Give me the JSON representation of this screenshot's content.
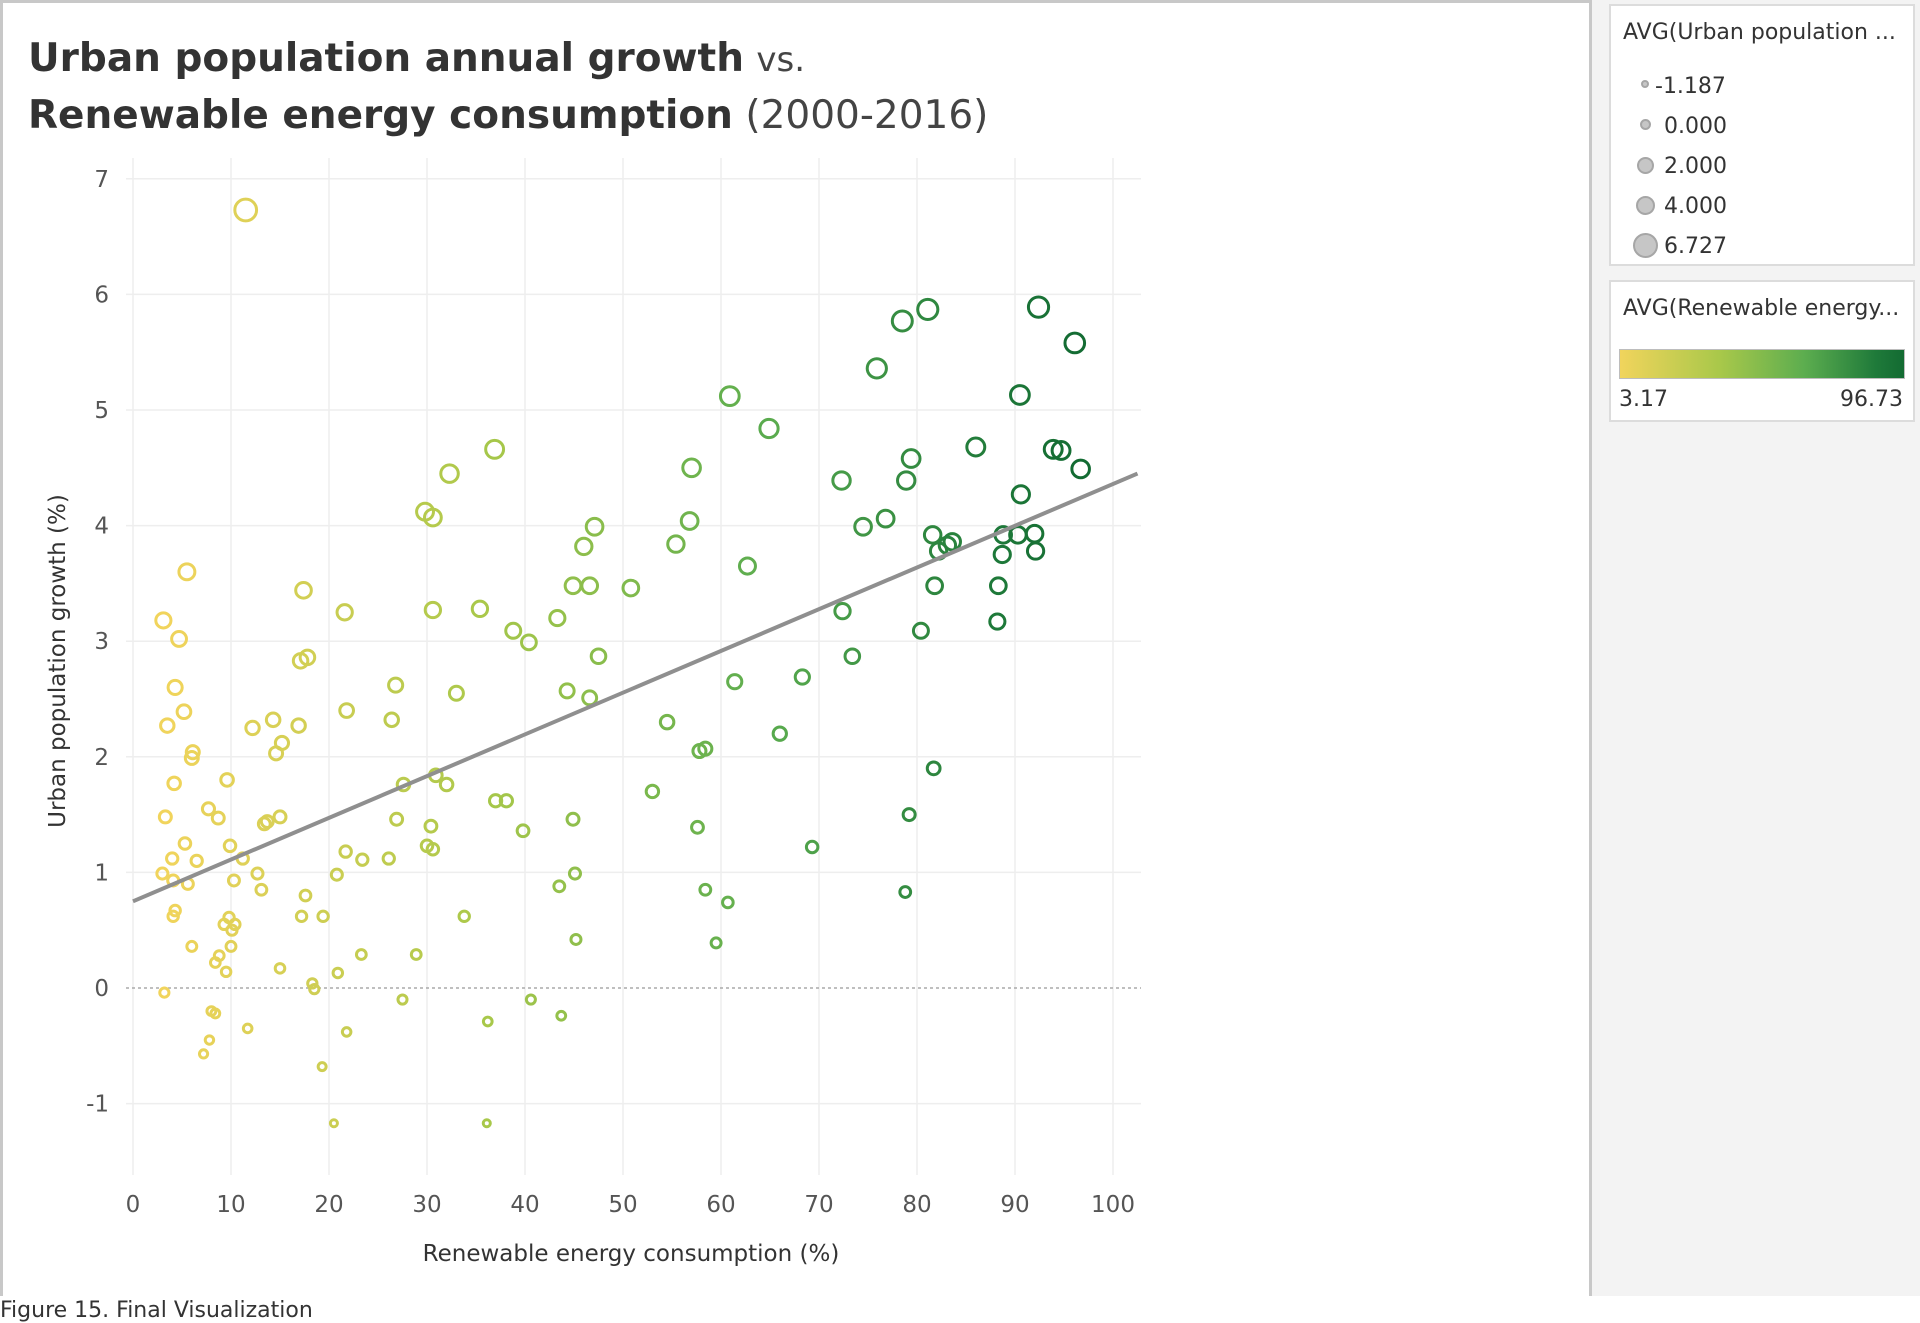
{
  "title": {
    "line1_bold": "Urban population annual growth",
    "line1_normal": "vs.",
    "line2_bold": "Renewable energy consumption",
    "line2_normal": "(2000-2016)"
  },
  "caption": "Figure 15. Final Visualization",
  "size_legend": {
    "title": "AVG(Urban population ...",
    "items": [
      "-1.187",
      "0.000",
      "2.000",
      "4.000",
      "6.727"
    ]
  },
  "color_legend": {
    "title": "AVG(Renewable energy...",
    "min_label": "3.17",
    "max_label": "96.73",
    "colors": [
      "#f1d45c",
      "#a9c84a",
      "#5cad4f",
      "#1f7a3a",
      "#136b32"
    ]
  },
  "chart_data": {
    "type": "scatter",
    "title": "Urban population annual growth vs. Renewable energy consumption (2000-2016)",
    "xlabel": "Renewable energy consumption (%)",
    "ylabel": "Urban population growth (%)",
    "xlim": [
      0,
      103
    ],
    "ylim": [
      -1.6,
      7.3
    ],
    "xticks": [
      0,
      10,
      20,
      30,
      40,
      50,
      60,
      70,
      80,
      90,
      100
    ],
    "yticks": [
      -1,
      0,
      1,
      2,
      3,
      4,
      5,
      6,
      7
    ],
    "grid": true,
    "zero_line": "dotted",
    "trend_line": {
      "x": [
        0,
        102.5
      ],
      "y": [
        0.75,
        4.45
      ]
    },
    "encoding": {
      "size": "urban population growth",
      "color": "renewable energy consumption"
    },
    "points": [
      [
        11.5,
        6.73
      ],
      [
        3.1,
        3.18
      ],
      [
        4.7,
        3.02
      ],
      [
        5.5,
        3.6
      ],
      [
        3.5,
        2.27
      ],
      [
        4.3,
        2.6
      ],
      [
        5.2,
        2.39
      ],
      [
        6.1,
        2.04
      ],
      [
        6.0,
        1.99
      ],
      [
        4.2,
        1.77
      ],
      [
        3.3,
        1.48
      ],
      [
        4.0,
        1.12
      ],
      [
        5.3,
        1.25
      ],
      [
        6.5,
        1.1
      ],
      [
        3.0,
        0.99
      ],
      [
        4.1,
        0.93
      ],
      [
        5.6,
        0.9
      ],
      [
        4.3,
        0.67
      ],
      [
        4.1,
        0.62
      ],
      [
        6.0,
        0.36
      ],
      [
        3.2,
        -0.04
      ],
      [
        7.7,
        1.55
      ],
      [
        8.7,
        1.47
      ],
      [
        9.6,
        1.8
      ],
      [
        9.9,
        1.23
      ],
      [
        10.3,
        0.93
      ],
      [
        9.3,
        0.55
      ],
      [
        9.8,
        0.61
      ],
      [
        10.1,
        0.5
      ],
      [
        10.4,
        0.55
      ],
      [
        8.8,
        0.28
      ],
      [
        8.4,
        0.22
      ],
      [
        9.5,
        0.14
      ],
      [
        10.0,
        0.36
      ],
      [
        8.0,
        -0.2
      ],
      [
        8.4,
        -0.22
      ],
      [
        7.8,
        -0.45
      ],
      [
        7.2,
        -0.57
      ],
      [
        11.7,
        -0.35
      ],
      [
        12.2,
        2.25
      ],
      [
        14.3,
        2.32
      ],
      [
        14.6,
        2.03
      ],
      [
        15.2,
        2.12
      ],
      [
        13.4,
        1.42
      ],
      [
        13.7,
        1.44
      ],
      [
        15.0,
        1.48
      ],
      [
        11.2,
        1.12
      ],
      [
        12.7,
        0.99
      ],
      [
        13.1,
        0.85
      ],
      [
        15.0,
        0.17
      ],
      [
        17.4,
        3.44
      ],
      [
        17.1,
        2.83
      ],
      [
        17.8,
        2.86
      ],
      [
        16.9,
        2.27
      ],
      [
        17.6,
        0.8
      ],
      [
        17.2,
        0.62
      ],
      [
        19.4,
        0.62
      ],
      [
        18.3,
        0.04
      ],
      [
        18.5,
        -0.01
      ],
      [
        19.3,
        -0.68
      ],
      [
        21.6,
        3.25
      ],
      [
        21.8,
        2.4
      ],
      [
        20.8,
        0.98
      ],
      [
        21.7,
        1.18
      ],
      [
        23.4,
        1.11
      ],
      [
        20.9,
        0.13
      ],
      [
        21.8,
        -0.38
      ],
      [
        23.3,
        0.29
      ],
      [
        20.5,
        -1.17
      ],
      [
        26.8,
        2.62
      ],
      [
        26.4,
        2.32
      ],
      [
        27.6,
        1.76
      ],
      [
        26.9,
        1.46
      ],
      [
        26.1,
        1.12
      ],
      [
        27.5,
        -0.1
      ],
      [
        28.9,
        0.29
      ],
      [
        29.8,
        4.12
      ],
      [
        30.6,
        4.07
      ],
      [
        32.3,
        4.45
      ],
      [
        30.6,
        3.27
      ],
      [
        33.0,
        2.55
      ],
      [
        30.9,
        1.84
      ],
      [
        32.0,
        1.76
      ],
      [
        30.4,
        1.4
      ],
      [
        30.0,
        1.23
      ],
      [
        30.6,
        1.2
      ],
      [
        33.8,
        0.62
      ],
      [
        36.2,
        -0.29
      ],
      [
        36.1,
        -1.17
      ],
      [
        36.9,
        4.66
      ],
      [
        35.4,
        3.28
      ],
      [
        38.8,
        3.09
      ],
      [
        40.4,
        2.99
      ],
      [
        37.0,
        1.62
      ],
      [
        38.1,
        1.62
      ],
      [
        39.8,
        1.36
      ],
      [
        40.6,
        -0.1
      ],
      [
        43.3,
        3.2
      ],
      [
        44.9,
        3.48
      ],
      [
        46.6,
        3.48
      ],
      [
        46.0,
        3.82
      ],
      [
        47.1,
        3.99
      ],
      [
        47.5,
        2.87
      ],
      [
        44.3,
        2.57
      ],
      [
        46.6,
        2.51
      ],
      [
        44.9,
        1.46
      ],
      [
        43.5,
        0.88
      ],
      [
        45.1,
        0.99
      ],
      [
        45.2,
        0.42
      ],
      [
        43.7,
        -0.24
      ],
      [
        50.8,
        3.46
      ],
      [
        53.0,
        1.7
      ],
      [
        54.5,
        2.3
      ],
      [
        57.0,
        4.5
      ],
      [
        56.8,
        4.04
      ],
      [
        55.4,
        3.84
      ],
      [
        57.8,
        2.05
      ],
      [
        58.4,
        2.07
      ],
      [
        57.6,
        1.39
      ],
      [
        58.4,
        0.85
      ],
      [
        59.5,
        0.39
      ],
      [
        60.9,
        5.12
      ],
      [
        64.9,
        4.84
      ],
      [
        62.7,
        3.65
      ],
      [
        61.4,
        2.65
      ],
      [
        60.7,
        0.74
      ],
      [
        66.0,
        2.2
      ],
      [
        68.3,
        2.69
      ],
      [
        69.3,
        1.22
      ],
      [
        72.3,
        4.39
      ],
      [
        72.4,
        3.26
      ],
      [
        73.4,
        2.87
      ],
      [
        74.5,
        3.99
      ],
      [
        75.9,
        5.36
      ],
      [
        76.8,
        4.06
      ],
      [
        78.5,
        5.77
      ],
      [
        81.1,
        5.87
      ],
      [
        79.4,
        4.58
      ],
      [
        78.9,
        4.39
      ],
      [
        81.6,
        3.92
      ],
      [
        82.2,
        3.78
      ],
      [
        83.1,
        3.83
      ],
      [
        83.6,
        3.86
      ],
      [
        81.8,
        3.48
      ],
      [
        80.4,
        3.09
      ],
      [
        81.7,
        1.9
      ],
      [
        79.2,
        1.5
      ],
      [
        78.8,
        0.83
      ],
      [
        86.0,
        4.68
      ],
      [
        88.8,
        3.92
      ],
      [
        90.3,
        3.92
      ],
      [
        88.7,
        3.75
      ],
      [
        88.3,
        3.48
      ],
      [
        88.2,
        3.17
      ],
      [
        90.5,
        5.13
      ],
      [
        90.6,
        4.27
      ],
      [
        92.4,
        5.89
      ],
      [
        93.9,
        4.66
      ],
      [
        94.7,
        4.65
      ],
      [
        96.1,
        5.58
      ],
      [
        96.7,
        4.49
      ],
      [
        92.0,
        3.93
      ],
      [
        92.1,
        3.78
      ]
    ]
  }
}
